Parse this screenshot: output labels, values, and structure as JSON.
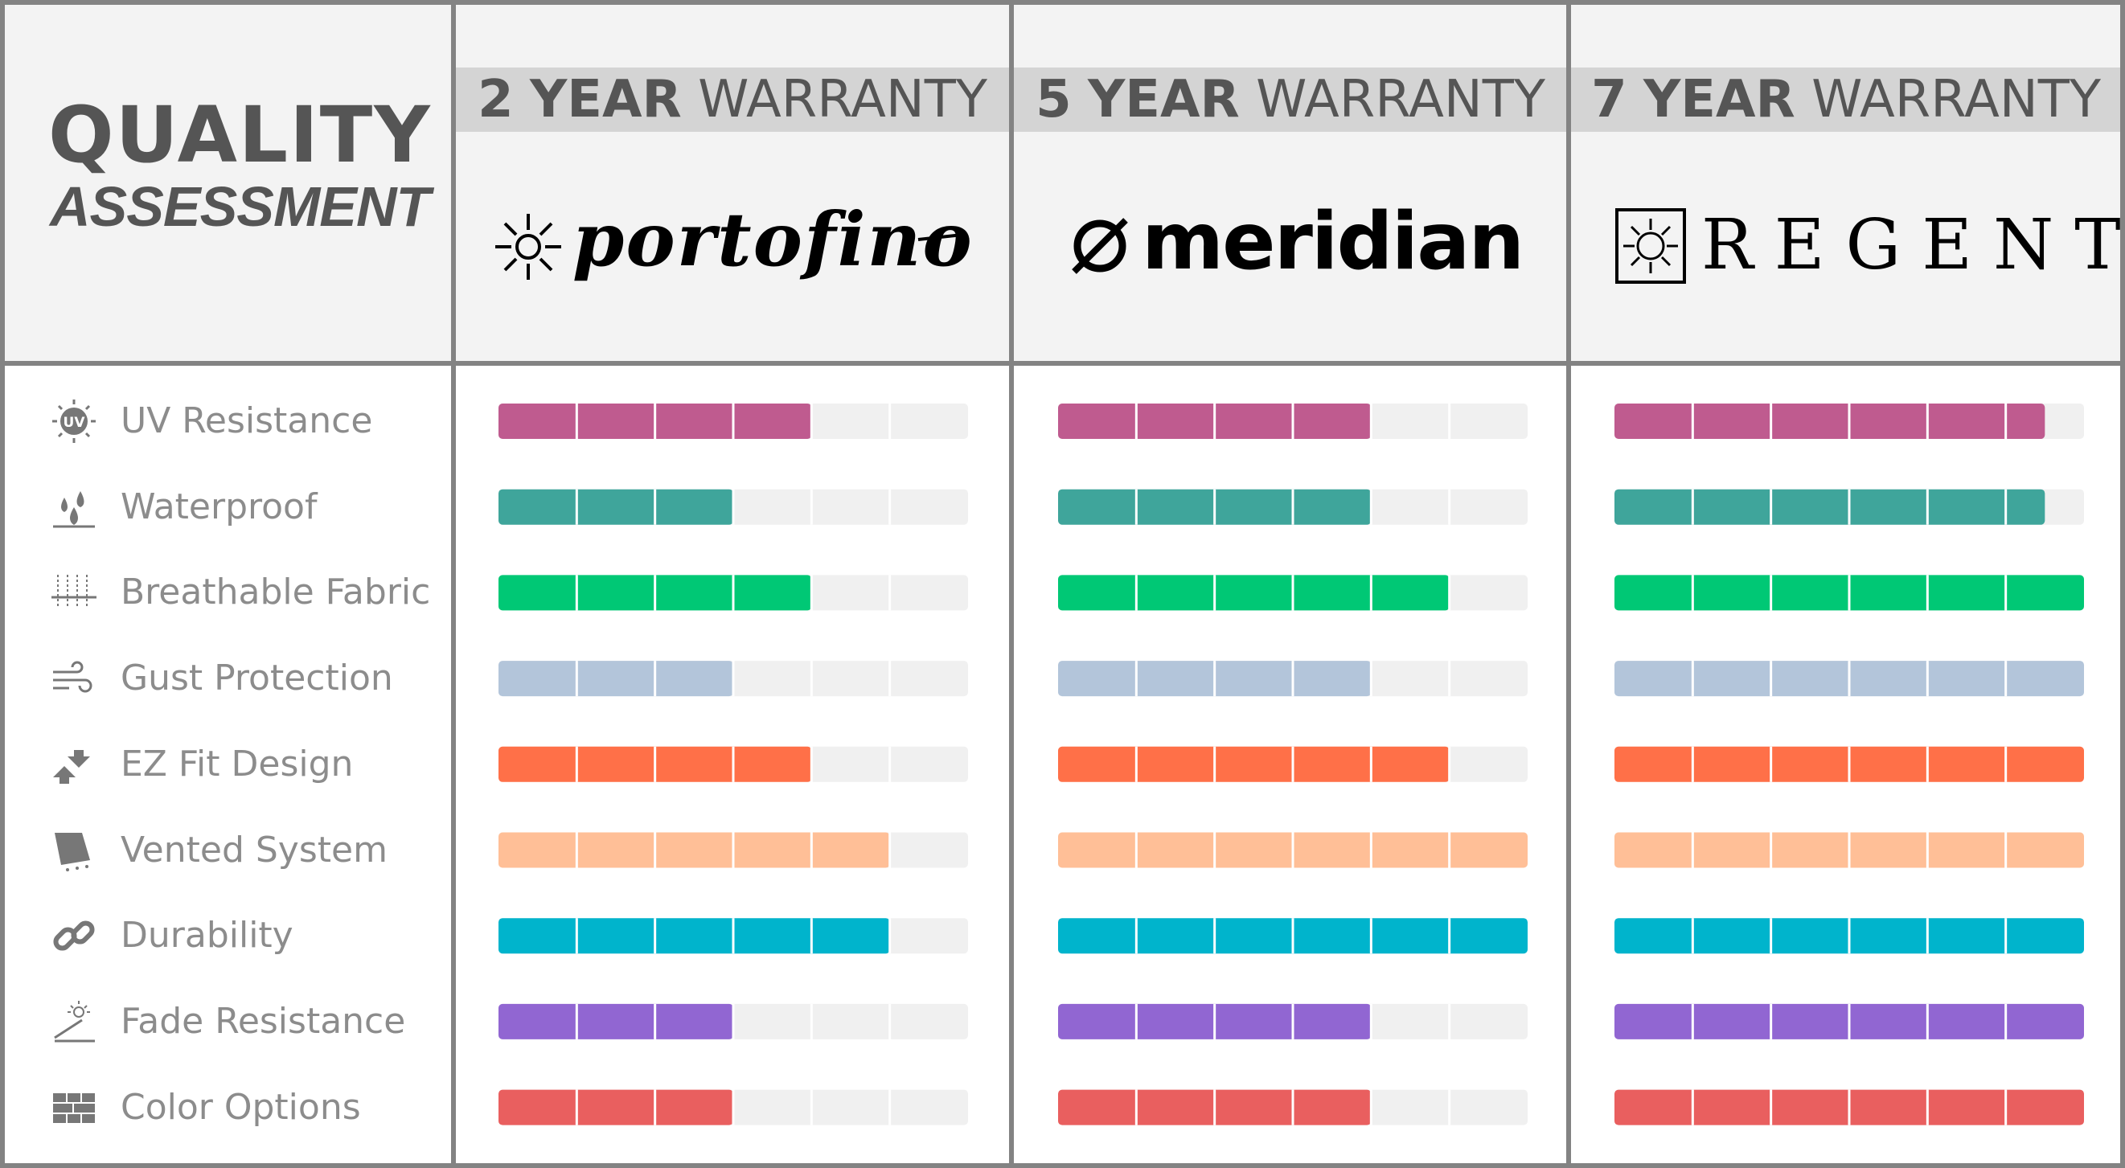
{
  "title": {
    "line1": "QUALITY",
    "line2": "ASSESSMENT"
  },
  "chart_data": {
    "type": "bar",
    "orientation": "horizontal",
    "segments_per_bar": 6,
    "max_value": 6,
    "categories": [
      "UV Resistance",
      "Waterproof",
      "Breathable Fabric",
      "Gust Protection",
      "EZ Fit Design",
      "Vented System",
      "Durability",
      "Fade Resistance",
      "Color Options"
    ],
    "category_colors": [
      "#bf5b8f",
      "#3fa59b",
      "#00c875",
      "#b3c5da",
      "#ff7048",
      "#ffbf97",
      "#00b4cc",
      "#9166d2",
      "#e95f5f"
    ],
    "category_icons": [
      "uv-icon",
      "water-drops-icon",
      "breathable-fabric-icon",
      "gust-wind-icon",
      "ez-fit-arrows-icon",
      "vented-system-icon",
      "chain-link-icon",
      "fade-sun-icon",
      "brick-color-icon"
    ],
    "series": [
      {
        "warranty_years": "2",
        "brand": "portofino",
        "values": [
          4,
          3,
          4,
          3,
          4,
          5,
          5,
          3,
          3
        ]
      },
      {
        "warranty_years": "5",
        "brand": "meridian",
        "values": [
          4,
          4,
          5,
          4,
          5,
          6,
          6,
          4,
          4
        ]
      },
      {
        "warranty_years": "7",
        "brand": "REGENT",
        "values": [
          5.5,
          5.5,
          6,
          6,
          6,
          6,
          6,
          6,
          6
        ]
      }
    ],
    "warranty_word_bold": "YEAR",
    "warranty_word": "WARRANTY",
    "track_color": "#f0f0f0",
    "grid_color": "#838383",
    "header_band_color": "#d4d4d4",
    "header_bg_color": "#f3f3f3"
  }
}
